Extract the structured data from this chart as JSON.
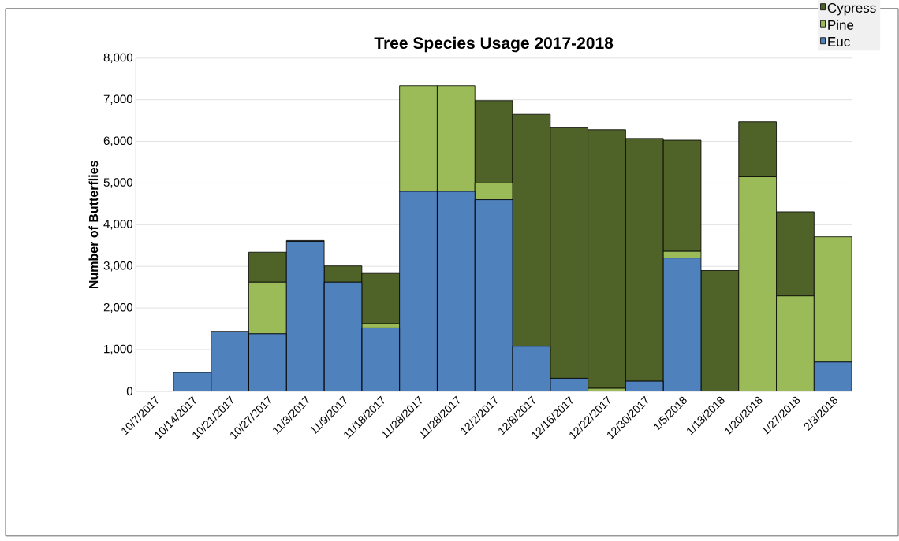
{
  "chart_data": {
    "type": "bar",
    "stacked": true,
    "title": "Tree Species Usage 2017-2018",
    "ylabel": "Number of Butterflies",
    "categories": [
      "10/7/2017",
      "10/14/2017",
      "10/21/2017",
      "10/27/2017",
      "11/3/2017",
      "11/9/2017",
      "11/18/2017",
      "11/28/2017",
      "11/28/2017",
      "12/2/2017",
      "12/8/2017",
      "12/16/2017",
      "12/22/2017",
      "12/30/2017",
      "1/5/2018",
      "1/13/2018",
      "1/20/2018",
      "1/27/2018",
      "2/3/2018"
    ],
    "series": [
      {
        "name": "Euc",
        "color": "#4f81bd",
        "values": [
          null,
          450,
          1440,
          1380,
          3600,
          2620,
          1520,
          4800,
          4800,
          4600,
          1080,
          310,
          0,
          240,
          3200,
          null,
          0,
          0,
          700
        ]
      },
      {
        "name": "Pine",
        "color": "#9bbb59",
        "values": [
          0,
          0,
          0,
          1240,
          0,
          0,
          100,
          2540,
          2540,
          400,
          0,
          0,
          70,
          0,
          160,
          0,
          5150,
          2290,
          3010
        ]
      },
      {
        "name": "Cypress",
        "color": "#4f6228",
        "values": [
          0,
          0,
          0,
          720,
          20,
          390,
          1210,
          0,
          0,
          1980,
          5570,
          6030,
          6210,
          5830,
          2670,
          2900,
          1320,
          2020,
          0
        ]
      }
    ],
    "ylim": [
      0,
      8000
    ],
    "yticks": [
      {
        "value": 0,
        "label": "0"
      },
      {
        "value": 1000,
        "label": "1,000"
      },
      {
        "value": 2000,
        "label": "2,000"
      },
      {
        "value": 3000,
        "label": "3,000"
      },
      {
        "value": 4000,
        "label": "4,000"
      },
      {
        "value": 5000,
        "label": "5,000"
      },
      {
        "value": 6000,
        "label": "6,000"
      },
      {
        "value": 7000,
        "label": "7,000"
      },
      {
        "value": 8000,
        "label": "8,000"
      }
    ],
    "grid": "y",
    "legend": "top right"
  }
}
